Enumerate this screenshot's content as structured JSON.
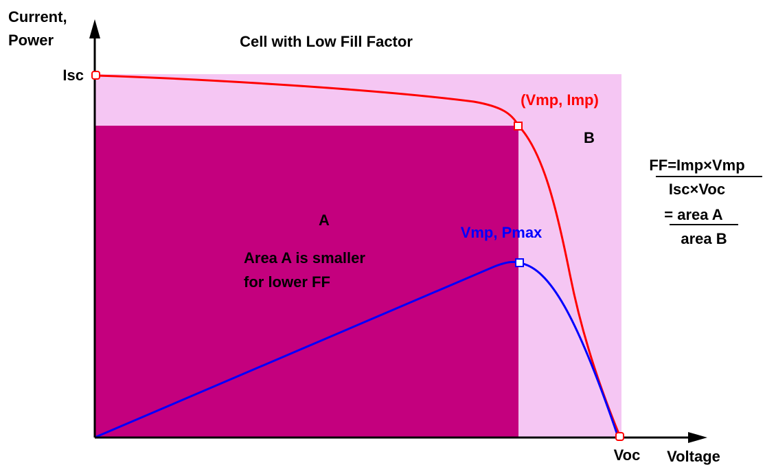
{
  "title": "Cell with Low Fill Factor",
  "axes": {
    "y_label": [
      "Current,",
      "Power"
    ],
    "x_label": "Voltage"
  },
  "points": {
    "isc": "Isc",
    "voc": "Voc",
    "vmp_imp": "(Vmp, Imp)",
    "vmp_pmax": "Vmp, Pmax"
  },
  "areas": {
    "a": "A",
    "b": "B",
    "note": [
      "Area A is smaller",
      "for lower FF"
    ]
  },
  "formula": [
    "FF=Imp×Vmp",
    "Isc×Voc",
    "= area A",
    "area B"
  ]
}
